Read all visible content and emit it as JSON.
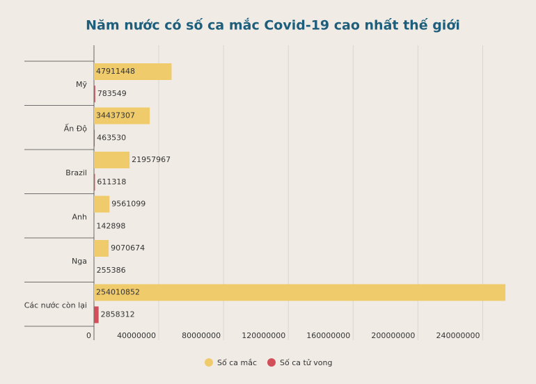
{
  "chart_data": {
    "type": "hbar",
    "title": "Năm nước có số ca mắc Covid-19 cao nhất thế giới",
    "categories": [
      "Mỹ",
      "Ấn Độ",
      "Brazil",
      "Anh",
      "Nga",
      "Các nước còn lại"
    ],
    "series": [
      {
        "name": "Số ca mắc",
        "color": "#f0cb6b",
        "values": [
          47911448,
          34437307,
          21957967,
          9561099,
          9070674,
          254010852
        ]
      },
      {
        "name": "Số ca tử vong",
        "color": "#d24f5a",
        "values": [
          783549,
          463530,
          611318,
          142898,
          255386,
          2858312
        ]
      }
    ],
    "xlim": [
      0,
      260000000
    ],
    "xticks": [
      0,
      40000000,
      80000000,
      120000000,
      160000000,
      200000000,
      240000000
    ],
    "grid": true,
    "legend": "bottom"
  }
}
